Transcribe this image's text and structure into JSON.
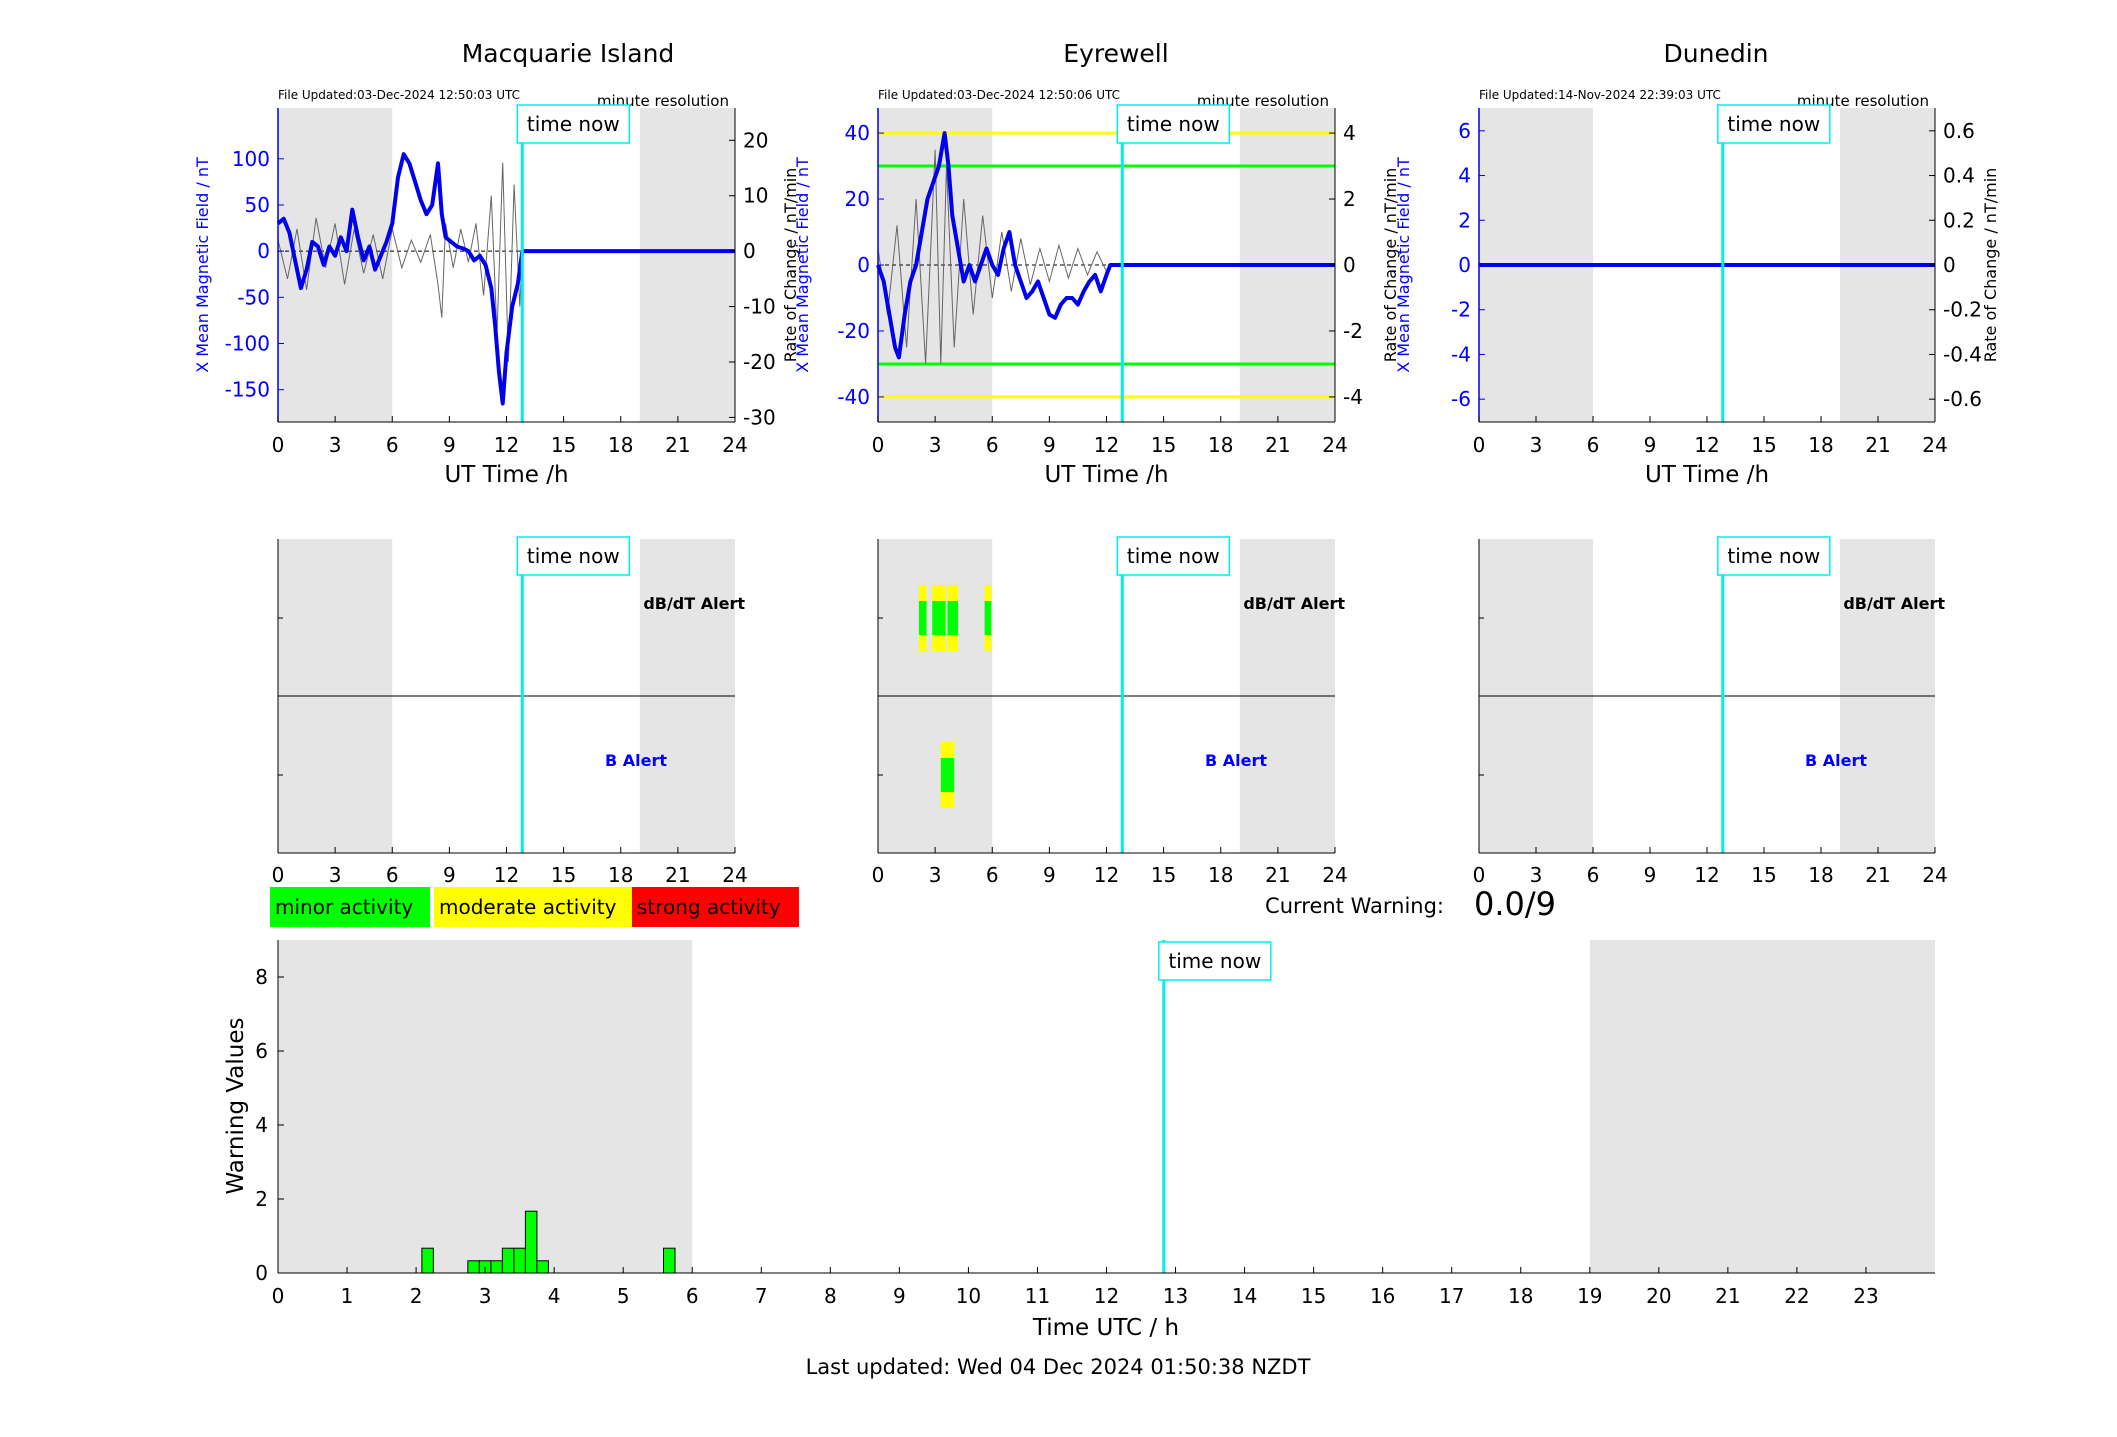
{
  "page": {
    "last_updated": "Last updated: Wed 04 Dec 2024 01:50:38 NZDT",
    "current_warning_label": "Current Warning:",
    "current_warning_value": "0.0/9",
    "time_now_label": "time now"
  },
  "colors": {
    "night_shade": "#e5e5e5",
    "time_now": "#00eeee",
    "field_line": "#0000ee",
    "rate_line": "#666666",
    "minor": "#00ff00",
    "moderate": "#ffff00",
    "strong": "#ff0000",
    "blue_label": "#0000ff"
  },
  "legend": [
    {
      "label": "minor activity",
      "color": "#00ff00"
    },
    {
      "label": "moderate activity",
      "color": "#ffff00"
    },
    {
      "label": "strong activity",
      "color": "#ff0000"
    }
  ],
  "chart_data": [
    {
      "type": "line",
      "title": "Macquarie Island",
      "file_updated": "File Updated:03-Dec-2024 12:50:03 UTC",
      "resolution": "minute resolution",
      "xlabel": "UT Time /h",
      "ylabel_left": "X Mean Magnetic Field / nT",
      "ylabel_right": "Rate of Change / nT/min",
      "x_ticks": [
        0,
        3,
        6,
        9,
        12,
        15,
        18,
        21,
        24
      ],
      "xlim": [
        0,
        24
      ],
      "ylim_left": [
        -185,
        155
      ],
      "y_ticks_left": [
        100,
        50,
        0,
        -50,
        -100,
        -150
      ],
      "ylim_right": [
        -30.83,
        25.83
      ],
      "y_ticks_right": [
        20,
        10,
        0,
        -10,
        -20,
        -30
      ],
      "night_bands": [
        [
          0,
          6
        ],
        [
          19,
          24
        ]
      ],
      "time_now": 12.83,
      "thresholds": [],
      "field_series": [
        [
          0,
          30
        ],
        [
          0.3,
          35
        ],
        [
          0.6,
          20
        ],
        [
          0.9,
          -10
        ],
        [
          1.2,
          -40
        ],
        [
          1.5,
          -20
        ],
        [
          1.8,
          10
        ],
        [
          2.1,
          5
        ],
        [
          2.4,
          -15
        ],
        [
          2.7,
          5
        ],
        [
          3.0,
          -5
        ],
        [
          3.3,
          15
        ],
        [
          3.6,
          0
        ],
        [
          3.9,
          45
        ],
        [
          4.2,
          15
        ],
        [
          4.5,
          -10
        ],
        [
          4.8,
          5
        ],
        [
          5.1,
          -20
        ],
        [
          5.4,
          -5
        ],
        [
          5.7,
          10
        ],
        [
          6.0,
          30
        ],
        [
          6.3,
          80
        ],
        [
          6.6,
          105
        ],
        [
          6.9,
          95
        ],
        [
          7.2,
          75
        ],
        [
          7.5,
          55
        ],
        [
          7.8,
          40
        ],
        [
          8.1,
          50
        ],
        [
          8.4,
          95
        ],
        [
          8.6,
          40
        ],
        [
          8.8,
          15
        ],
        [
          9.1,
          10
        ],
        [
          9.4,
          5
        ],
        [
          9.7,
          3
        ],
        [
          10.0,
          0
        ],
        [
          10.3,
          -10
        ],
        [
          10.6,
          -5
        ],
        [
          10.9,
          -15
        ],
        [
          11.2,
          -40
        ],
        [
          11.4,
          -80
        ],
        [
          11.6,
          -130
        ],
        [
          11.8,
          -165
        ],
        [
          12.0,
          -110
        ],
        [
          12.3,
          -60
        ],
        [
          12.6,
          -35
        ],
        [
          12.83,
          0
        ],
        [
          24,
          0
        ]
      ],
      "rate_series": [
        [
          0,
          2
        ],
        [
          0.5,
          -5
        ],
        [
          1,
          4
        ],
        [
          1.5,
          -7
        ],
        [
          2,
          6
        ],
        [
          2.5,
          -3
        ],
        [
          3,
          5
        ],
        [
          3.5,
          -6
        ],
        [
          4,
          4
        ],
        [
          4.5,
          -4
        ],
        [
          5,
          3
        ],
        [
          5.5,
          -5
        ],
        [
          6,
          4
        ],
        [
          6.5,
          -3
        ],
        [
          7,
          2
        ],
        [
          7.5,
          -2
        ],
        [
          8,
          3
        ],
        [
          8.4,
          -6
        ],
        [
          8.6,
          -12
        ],
        [
          8.8,
          5
        ],
        [
          9.2,
          -3
        ],
        [
          9.6,
          4
        ],
        [
          10,
          -2
        ],
        [
          10.4,
          5
        ],
        [
          10.8,
          -8
        ],
        [
          11.2,
          10
        ],
        [
          11.5,
          -15
        ],
        [
          11.8,
          16
        ],
        [
          12.1,
          -20
        ],
        [
          12.4,
          12
        ],
        [
          12.7,
          -10
        ],
        [
          12.83,
          0
        ]
      ]
    },
    {
      "type": "line",
      "title": "Eyrewell",
      "file_updated": "File Updated:03-Dec-2024 12:50:06 UTC",
      "resolution": "minute resolution",
      "xlabel": "UT Time /h",
      "ylabel_left": "X Mean Magnetic Field / nT",
      "ylabel_right": "Rate of Change / nT/min",
      "x_ticks": [
        0,
        3,
        6,
        9,
        12,
        15,
        18,
        21,
        24
      ],
      "xlim": [
        0,
        24
      ],
      "ylim_left": [
        -47.6,
        47.6
      ],
      "y_ticks_left": [
        40,
        20,
        0,
        -20,
        -40
      ],
      "ylim_right": [
        -4.76,
        4.76
      ],
      "y_ticks_right": [
        4,
        2,
        0,
        -2,
        -4
      ],
      "night_bands": [
        [
          0,
          6
        ],
        [
          19,
          24
        ]
      ],
      "time_now": 12.83,
      "thresholds": [
        {
          "value": 40,
          "color": "#ffff00"
        },
        {
          "value": 30,
          "color": "#00ff00"
        },
        {
          "value": -30,
          "color": "#00ff00"
        },
        {
          "value": -40,
          "color": "#ffff00"
        }
      ],
      "field_series": [
        [
          0,
          0
        ],
        [
          0.3,
          -5
        ],
        [
          0.6,
          -15
        ],
        [
          0.9,
          -25
        ],
        [
          1.1,
          -28
        ],
        [
          1.4,
          -15
        ],
        [
          1.7,
          -5
        ],
        [
          2.0,
          0
        ],
        [
          2.3,
          10
        ],
        [
          2.6,
          20
        ],
        [
          2.9,
          25
        ],
        [
          3.2,
          30
        ],
        [
          3.5,
          40
        ],
        [
          3.7,
          30
        ],
        [
          3.9,
          15
        ],
        [
          4.2,
          5
        ],
        [
          4.5,
          -5
        ],
        [
          4.8,
          0
        ],
        [
          5.1,
          -5
        ],
        [
          5.4,
          0
        ],
        [
          5.7,
          5
        ],
        [
          6.0,
          0
        ],
        [
          6.3,
          -3
        ],
        [
          6.6,
          5
        ],
        [
          6.9,
          10
        ],
        [
          7.2,
          0
        ],
        [
          7.5,
          -5
        ],
        [
          7.8,
          -10
        ],
        [
          8.1,
          -8
        ],
        [
          8.4,
          -5
        ],
        [
          8.7,
          -10
        ],
        [
          9.0,
          -15
        ],
        [
          9.3,
          -16
        ],
        [
          9.6,
          -12
        ],
        [
          9.9,
          -10
        ],
        [
          10.2,
          -10
        ],
        [
          10.5,
          -12
        ],
        [
          10.8,
          -8
        ],
        [
          11.1,
          -5
        ],
        [
          11.4,
          -3
        ],
        [
          11.7,
          -8
        ],
        [
          12.0,
          -3
        ],
        [
          12.2,
          0
        ],
        [
          24,
          0
        ]
      ],
      "rate_series": [
        [
          0,
          0.5
        ],
        [
          0.5,
          -1.5
        ],
        [
          1,
          1.2
        ],
        [
          1.5,
          -2.5
        ],
        [
          2,
          2
        ],
        [
          2.5,
          -3
        ],
        [
          3,
          3.5
        ],
        [
          3.3,
          -3
        ],
        [
          3.6,
          3
        ],
        [
          4,
          -2.5
        ],
        [
          4.5,
          2
        ],
        [
          5,
          -1.5
        ],
        [
          5.5,
          1.5
        ],
        [
          6,
          -1
        ],
        [
          6.5,
          1
        ],
        [
          7,
          -0.8
        ],
        [
          7.5,
          0.8
        ],
        [
          8,
          -0.6
        ],
        [
          8.5,
          0.5
        ],
        [
          9,
          -0.5
        ],
        [
          9.5,
          0.6
        ],
        [
          10,
          -0.4
        ],
        [
          10.5,
          0.5
        ],
        [
          11,
          -0.3
        ],
        [
          11.5,
          0.4
        ],
        [
          12,
          -0.2
        ],
        [
          12.2,
          0
        ]
      ]
    },
    {
      "type": "line",
      "title": "Dunedin",
      "file_updated": "File Updated:14-Nov-2024 22:39:03 UTC",
      "resolution": "minute resolution",
      "xlabel": "UT Time /h",
      "ylabel_left": "X Mean Magnetic Field / nT",
      "ylabel_right": "Rate of Change / nT/min",
      "x_ticks": [
        0,
        3,
        6,
        9,
        12,
        15,
        18,
        21,
        24
      ],
      "xlim": [
        0,
        24
      ],
      "ylim_left": [
        -7.02,
        7.02
      ],
      "y_ticks_left": [
        6,
        4,
        2,
        0,
        -2,
        -4,
        -6
      ],
      "ylim_right": [
        -0.702,
        0.702
      ],
      "y_ticks_right": [
        0.6,
        0.4,
        0.2,
        0,
        -0.2,
        -0.4,
        -0.6
      ],
      "night_bands": [
        [
          0,
          6
        ],
        [
          19,
          24
        ]
      ],
      "time_now": 12.83,
      "thresholds": [],
      "field_series": [
        [
          0,
          0
        ],
        [
          24,
          0
        ]
      ],
      "rate_series": []
    },
    {
      "type": "bar",
      "title": "",
      "panel": "alerts",
      "station": "Macquarie Island",
      "x_ticks": [
        0,
        3,
        6,
        9,
        12,
        15,
        18,
        21,
        24
      ],
      "xlim": [
        0,
        24
      ],
      "rows": [
        "dB/dT Alert",
        "B Alert"
      ],
      "night_bands": [
        [
          0,
          6
        ],
        [
          19,
          24
        ]
      ],
      "time_now": 12.83,
      "alerts": []
    },
    {
      "type": "bar",
      "title": "",
      "panel": "alerts",
      "station": "Eyrewell",
      "x_ticks": [
        0,
        3,
        6,
        9,
        12,
        15,
        18,
        21,
        24
      ],
      "xlim": [
        0,
        24
      ],
      "rows": [
        "dB/dT Alert",
        "B Alert"
      ],
      "night_bands": [
        [
          0,
          6
        ],
        [
          19,
          24
        ]
      ],
      "time_now": 12.83,
      "alerts": [
        {
          "row": 0,
          "start": 2.15,
          "end": 2.55,
          "level": "minor"
        },
        {
          "row": 0,
          "start": 2.85,
          "end": 3.55,
          "level": "minor"
        },
        {
          "row": 0,
          "start": 3.65,
          "end": 4.2,
          "level": "minor"
        },
        {
          "row": 0,
          "start": 5.6,
          "end": 5.95,
          "level": "minor"
        },
        {
          "row": 1,
          "start": 3.3,
          "end": 4.0,
          "level": "minor"
        }
      ]
    },
    {
      "type": "bar",
      "title": "",
      "panel": "alerts",
      "station": "Dunedin",
      "x_ticks": [
        0,
        3,
        6,
        9,
        12,
        15,
        18,
        21,
        24
      ],
      "xlim": [
        0,
        24
      ],
      "rows": [
        "dB/dT Alert",
        "B Alert"
      ],
      "night_bands": [
        [
          0,
          6
        ],
        [
          19,
          24
        ]
      ],
      "time_now": 12.83,
      "alerts": []
    },
    {
      "type": "bar",
      "title": "",
      "xlabel": "Time UTC / h",
      "ylabel": "Warning Values",
      "x_ticks": [
        0,
        1,
        2,
        3,
        4,
        5,
        6,
        7,
        8,
        9,
        10,
        11,
        12,
        13,
        14,
        15,
        16,
        17,
        18,
        19,
        20,
        21,
        22,
        23
      ],
      "xlim": [
        0,
        24
      ],
      "ylim": [
        0,
        9
      ],
      "y_ticks": [
        0,
        2,
        4,
        6,
        8
      ],
      "night_bands": [
        [
          0,
          6
        ],
        [
          19,
          24
        ]
      ],
      "time_now": 12.83,
      "bar_width": 0.1667,
      "bars": [
        [
          2.167,
          0.67
        ],
        [
          2.833,
          0.33
        ],
        [
          3.0,
          0.33
        ],
        [
          3.167,
          0.33
        ],
        [
          3.333,
          0.67
        ],
        [
          3.5,
          0.67
        ],
        [
          3.667,
          1.67
        ],
        [
          3.833,
          0.33
        ],
        [
          5.667,
          0.67
        ]
      ]
    }
  ]
}
